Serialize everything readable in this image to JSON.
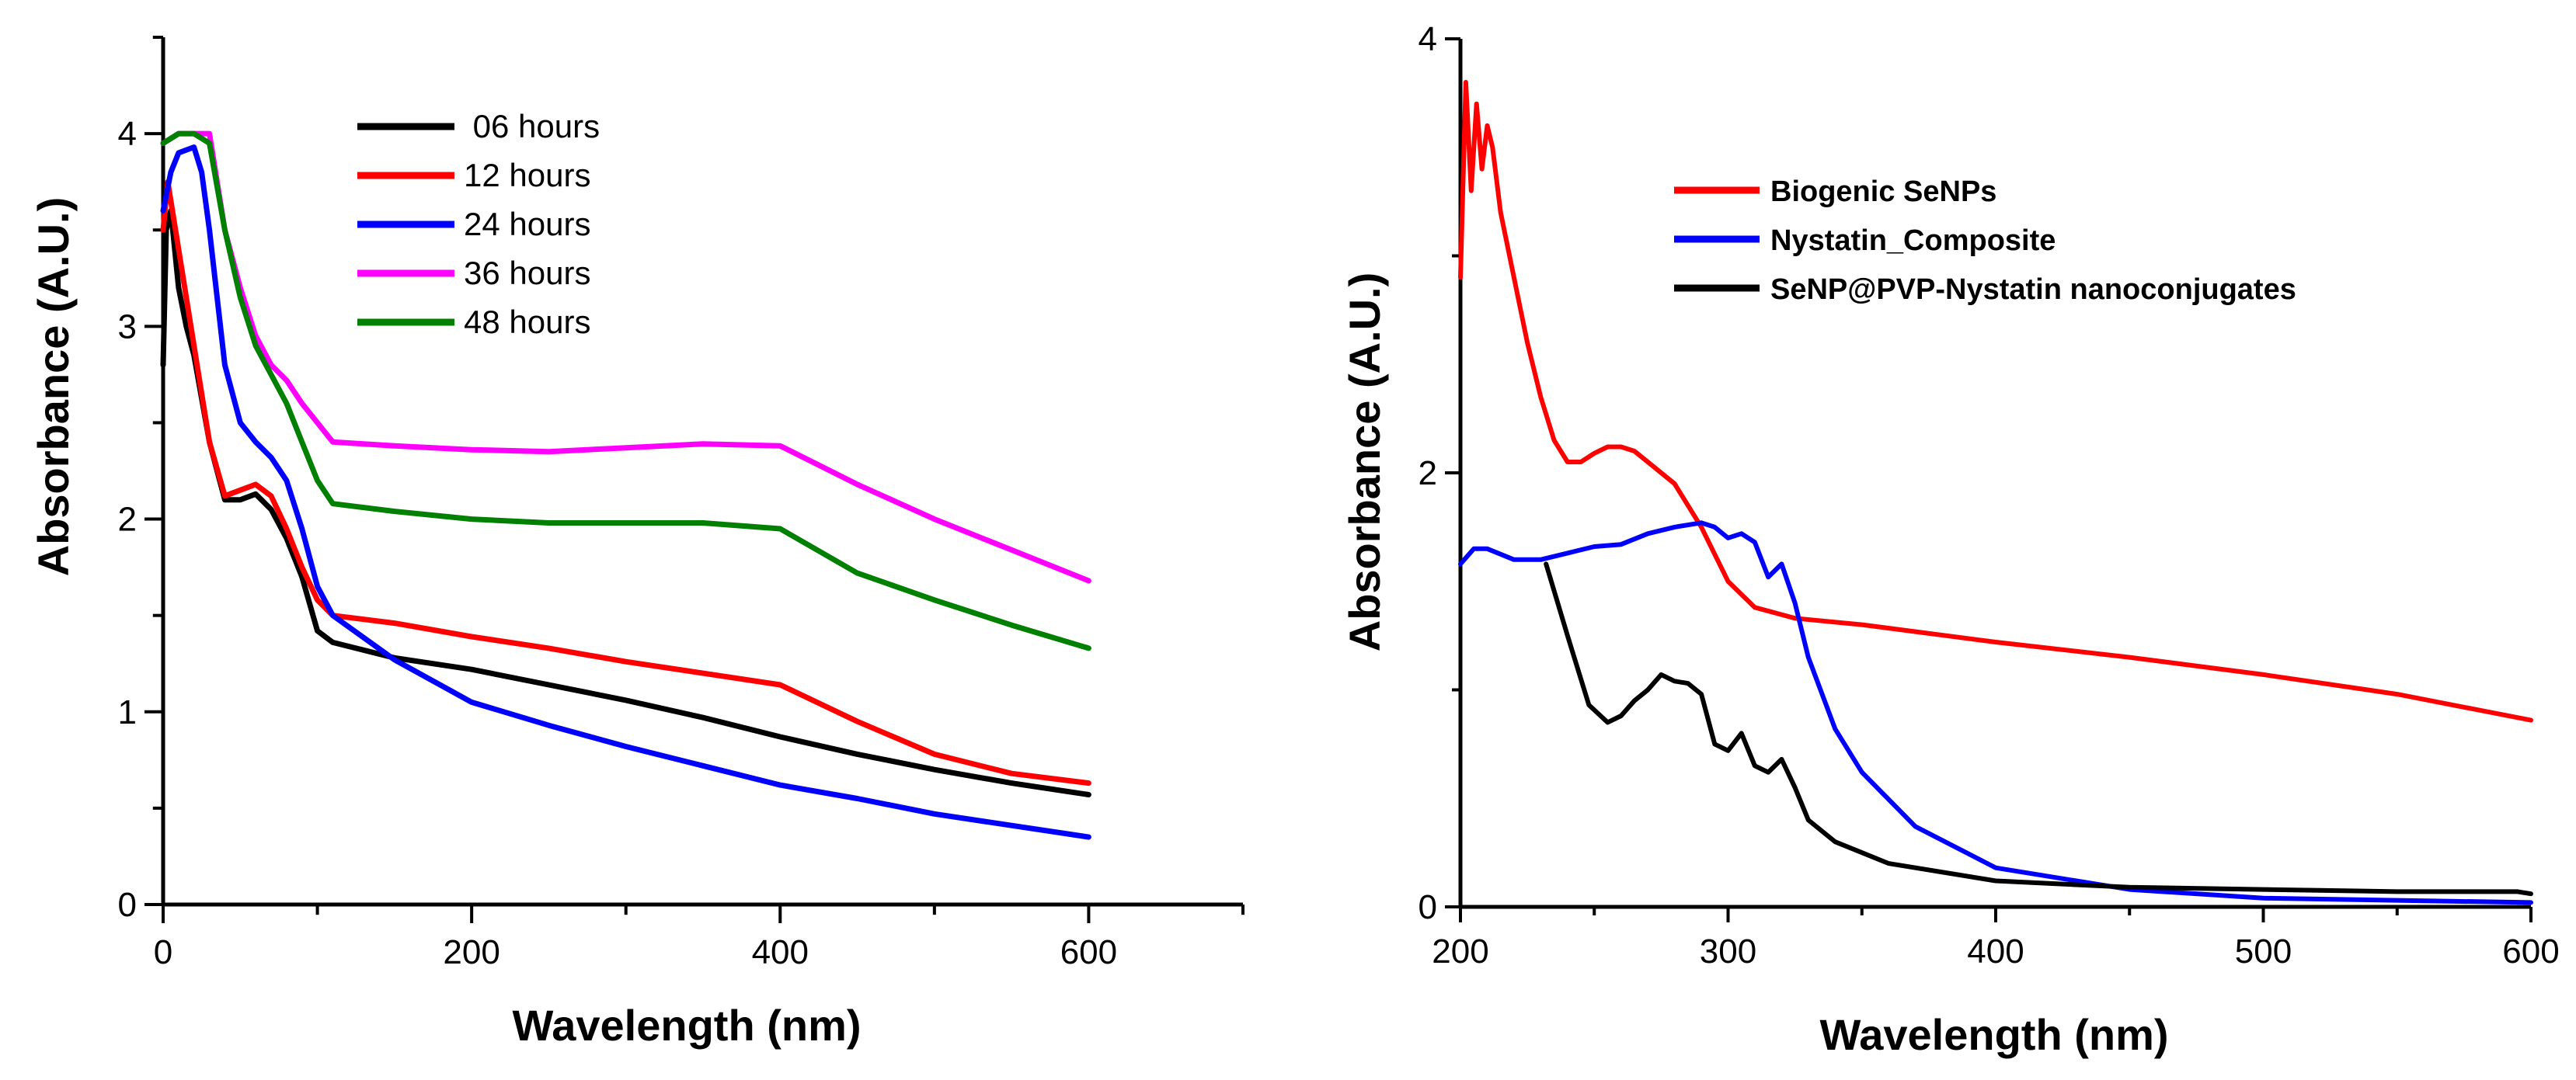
{
  "chart_data": [
    {
      "type": "line",
      "title": "",
      "xlabel": "Wavelength (nm)",
      "ylabel": "Absorbance (A.U.)",
      "xlim": [
        0,
        700
      ],
      "ylim": [
        0,
        4.5
      ],
      "x_ticks": [
        0,
        200,
        400,
        600
      ],
      "y_ticks": [
        0,
        1,
        2,
        3,
        4
      ],
      "legend_position": "top-center",
      "series": [
        {
          "name": " 06 hours",
          "color": "#000000",
          "points": [
            [
              0,
              2.8
            ],
            [
              2,
              3.5
            ],
            [
              5,
              3.6
            ],
            [
              10,
              3.2
            ],
            [
              15,
              3.0
            ],
            [
              20,
              2.85
            ],
            [
              30,
              2.4
            ],
            [
              40,
              2.1
            ],
            [
              50,
              2.1
            ],
            [
              60,
              2.13
            ],
            [
              70,
              2.05
            ],
            [
              80,
              1.9
            ],
            [
              90,
              1.7
            ],
            [
              100,
              1.42
            ],
            [
              110,
              1.36
            ],
            [
              150,
              1.28
            ],
            [
              200,
              1.22
            ],
            [
              250,
              1.14
            ],
            [
              300,
              1.06
            ],
            [
              350,
              0.97
            ],
            [
              400,
              0.87
            ],
            [
              450,
              0.78
            ],
            [
              500,
              0.7
            ],
            [
              550,
              0.63
            ],
            [
              600,
              0.57
            ]
          ]
        },
        {
          "name": "12 hours",
          "color": "#ff0000",
          "points": [
            [
              0,
              3.5
            ],
            [
              3,
              3.75
            ],
            [
              10,
              3.4
            ],
            [
              20,
              2.9
            ],
            [
              30,
              2.4
            ],
            [
              40,
              2.12
            ],
            [
              50,
              2.15
            ],
            [
              60,
              2.18
            ],
            [
              70,
              2.12
            ],
            [
              80,
              1.95
            ],
            [
              90,
              1.75
            ],
            [
              100,
              1.58
            ],
            [
              110,
              1.5
            ],
            [
              150,
              1.46
            ],
            [
              200,
              1.39
            ],
            [
              250,
              1.33
            ],
            [
              300,
              1.26
            ],
            [
              350,
              1.2
            ],
            [
              400,
              1.14
            ],
            [
              450,
              0.95
            ],
            [
              500,
              0.78
            ],
            [
              550,
              0.68
            ],
            [
              600,
              0.63
            ]
          ]
        },
        {
          "name": "24 hours",
          "color": "#0000ff",
          "points": [
            [
              0,
              3.6
            ],
            [
              5,
              3.8
            ],
            [
              10,
              3.9
            ],
            [
              20,
              3.93
            ],
            [
              25,
              3.8
            ],
            [
              30,
              3.5
            ],
            [
              40,
              2.8
            ],
            [
              50,
              2.5
            ],
            [
              60,
              2.4
            ],
            [
              70,
              2.32
            ],
            [
              80,
              2.2
            ],
            [
              90,
              1.95
            ],
            [
              100,
              1.65
            ],
            [
              110,
              1.5
            ],
            [
              150,
              1.27
            ],
            [
              200,
              1.05
            ],
            [
              250,
              0.93
            ],
            [
              300,
              0.82
            ],
            [
              350,
              0.72
            ],
            [
              400,
              0.62
            ],
            [
              450,
              0.55
            ],
            [
              500,
              0.47
            ],
            [
              550,
              0.41
            ],
            [
              600,
              0.35
            ]
          ]
        },
        {
          "name": "36 hours",
          "color": "#ff00ff",
          "points": [
            [
              0,
              3.95
            ],
            [
              10,
              4.0
            ],
            [
              20,
              4.0
            ],
            [
              30,
              4.0
            ],
            [
              40,
              3.5
            ],
            [
              50,
              3.2
            ],
            [
              60,
              2.95
            ],
            [
              70,
              2.8
            ],
            [
              80,
              2.72
            ],
            [
              90,
              2.6
            ],
            [
              100,
              2.5
            ],
            [
              110,
              2.4
            ],
            [
              150,
              2.38
            ],
            [
              200,
              2.36
            ],
            [
              250,
              2.35
            ],
            [
              300,
              2.37
            ],
            [
              350,
              2.39
            ],
            [
              400,
              2.38
            ],
            [
              450,
              2.18
            ],
            [
              500,
              2.0
            ],
            [
              550,
              1.84
            ],
            [
              600,
              1.68
            ]
          ]
        },
        {
          "name": "48 hours",
          "color": "#008000",
          "points": [
            [
              0,
              3.95
            ],
            [
              10,
              4.0
            ],
            [
              20,
              4.0
            ],
            [
              30,
              3.95
            ],
            [
              40,
              3.5
            ],
            [
              50,
              3.15
            ],
            [
              60,
              2.9
            ],
            [
              70,
              2.75
            ],
            [
              80,
              2.6
            ],
            [
              90,
              2.4
            ],
            [
              100,
              2.2
            ],
            [
              110,
              2.08
            ],
            [
              150,
              2.04
            ],
            [
              200,
              2.0
            ],
            [
              250,
              1.98
            ],
            [
              300,
              1.98
            ],
            [
              350,
              1.98
            ],
            [
              400,
              1.95
            ],
            [
              450,
              1.72
            ],
            [
              500,
              1.58
            ],
            [
              550,
              1.45
            ],
            [
              600,
              1.33
            ]
          ]
        }
      ]
    },
    {
      "type": "line",
      "title": "",
      "xlabel": "Wavelength (nm)",
      "ylabel": "Absorbance (A.U.)",
      "xlim": [
        200,
        600
      ],
      "ylim": [
        0,
        4
      ],
      "x_ticks": [
        200,
        300,
        400,
        500,
        600
      ],
      "y_ticks": [
        0,
        2,
        4
      ],
      "legend_position": "top-center",
      "series": [
        {
          "name": "Biogenic SeNPs",
          "color": "#ff0000",
          "points": [
            [
              200,
              2.9
            ],
            [
              202,
              3.8
            ],
            [
              204,
              3.3
            ],
            [
              206,
              3.7
            ],
            [
              208,
              3.4
            ],
            [
              210,
              3.6
            ],
            [
              212,
              3.5
            ],
            [
              215,
              3.2
            ],
            [
              220,
              2.9
            ],
            [
              225,
              2.6
            ],
            [
              230,
              2.35
            ],
            [
              235,
              2.15
            ],
            [
              240,
              2.05
            ],
            [
              245,
              2.05
            ],
            [
              250,
              2.09
            ],
            [
              255,
              2.12
            ],
            [
              260,
              2.12
            ],
            [
              265,
              2.1
            ],
            [
              270,
              2.05
            ],
            [
              280,
              1.95
            ],
            [
              290,
              1.75
            ],
            [
              300,
              1.5
            ],
            [
              310,
              1.38
            ],
            [
              325,
              1.33
            ],
            [
              350,
              1.3
            ],
            [
              400,
              1.22
            ],
            [
              450,
              1.15
            ],
            [
              500,
              1.07
            ],
            [
              550,
              0.98
            ],
            [
              600,
              0.86
            ]
          ]
        },
        {
          "name": "Nystatin_Composite",
          "color": "#0000ff",
          "points": [
            [
              200,
              1.58
            ],
            [
              205,
              1.65
            ],
            [
              210,
              1.65
            ],
            [
              220,
              1.6
            ],
            [
              230,
              1.6
            ],
            [
              240,
              1.63
            ],
            [
              250,
              1.66
            ],
            [
              260,
              1.67
            ],
            [
              270,
              1.72
            ],
            [
              280,
              1.75
            ],
            [
              290,
              1.77
            ],
            [
              295,
              1.75
            ],
            [
              300,
              1.7
            ],
            [
              305,
              1.72
            ],
            [
              310,
              1.68
            ],
            [
              315,
              1.52
            ],
            [
              320,
              1.58
            ],
            [
              325,
              1.4
            ],
            [
              330,
              1.15
            ],
            [
              340,
              0.82
            ],
            [
              350,
              0.62
            ],
            [
              370,
              0.37
            ],
            [
              400,
              0.18
            ],
            [
              450,
              0.08
            ],
            [
              500,
              0.04
            ],
            [
              550,
              0.03
            ],
            [
              600,
              0.02
            ]
          ]
        },
        {
          "name": "SeNP@PVP-Nystatin nanoconjugates",
          "color": "#000000",
          "points": [
            [
              232,
              1.58
            ],
            [
              240,
              1.25
            ],
            [
              248,
              0.93
            ],
            [
              255,
              0.85
            ],
            [
              260,
              0.88
            ],
            [
              265,
              0.95
            ],
            [
              270,
              1.0
            ],
            [
              275,
              1.07
            ],
            [
              280,
              1.04
            ],
            [
              285,
              1.03
            ],
            [
              290,
              0.98
            ],
            [
              295,
              0.75
            ],
            [
              300,
              0.72
            ],
            [
              305,
              0.8
            ],
            [
              310,
              0.65
            ],
            [
              315,
              0.62
            ],
            [
              320,
              0.68
            ],
            [
              325,
              0.55
            ],
            [
              330,
              0.4
            ],
            [
              340,
              0.3
            ],
            [
              360,
              0.2
            ],
            [
              400,
              0.12
            ],
            [
              450,
              0.09
            ],
            [
              500,
              0.08
            ],
            [
              550,
              0.07
            ],
            [
              595,
              0.07
            ],
            [
              600,
              0.06
            ]
          ]
        }
      ]
    }
  ]
}
